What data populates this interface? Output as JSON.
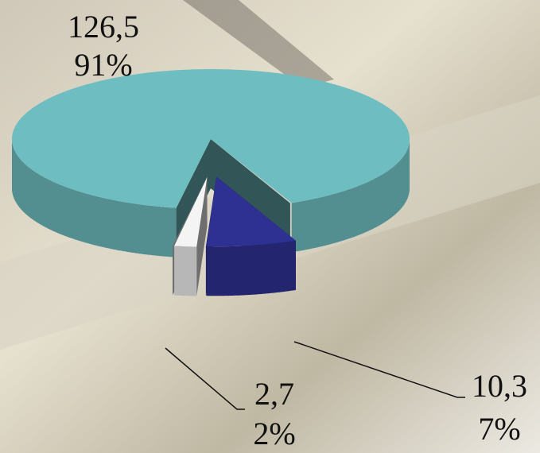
{
  "chart_data": {
    "type": "pie3d",
    "values": [
      126.5,
      10.3,
      2.7
    ],
    "value_labels": [
      "126,5",
      "10,3",
      "2,7"
    ],
    "percent_labels": [
      "91%",
      "7%",
      "2%"
    ],
    "colors": [
      "#6ebdc1",
      "#2e3192",
      "#f4f4f4"
    ],
    "explode": [
      0,
      1,
      1
    ]
  }
}
